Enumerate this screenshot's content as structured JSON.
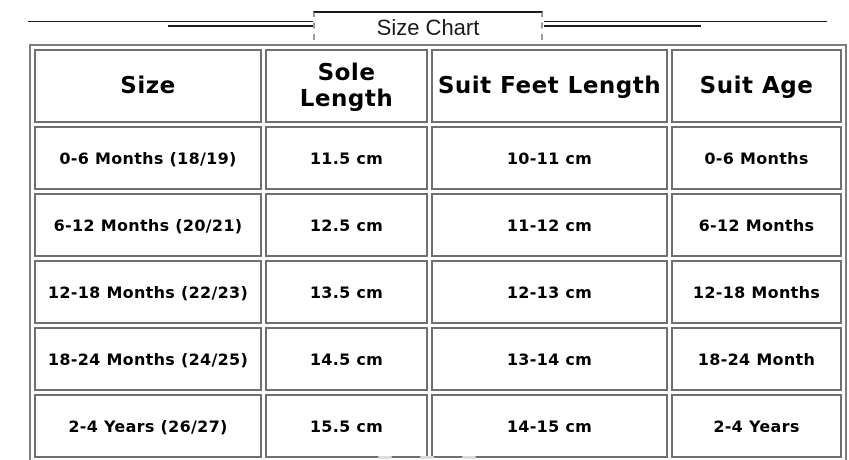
{
  "title": "Size Chart",
  "chart_data": {
    "type": "table",
    "title": "Size Chart",
    "columns": [
      "Size",
      "Sole Length",
      "Suit Feet Length",
      "Suit Age"
    ],
    "rows": [
      [
        "0-6 Months (18/19)",
        "11.5 cm",
        "10-11 cm",
        "0-6 Months"
      ],
      [
        "6-12 Months (20/21)",
        "12.5 cm",
        "11-12 cm",
        "6-12 Months"
      ],
      [
        "12-18 Months (22/23)",
        "13.5 cm",
        "12-13 cm",
        "12-18 Months"
      ],
      [
        "18-24 Months (24/25)",
        "14.5 cm",
        "13-14 cm",
        "18-24 Month"
      ],
      [
        "2-4 Years (26/27)",
        "15.5 cm",
        "14-15 cm",
        "2-4 Years"
      ]
    ]
  },
  "colors": {
    "text": "#000000",
    "background": "#ffffff",
    "table_border": "#7d7d7d",
    "cell_border": "#6f6f6f",
    "title_border_top": "#1a1a1a",
    "title_border_sides": "#9a9a9a"
  }
}
